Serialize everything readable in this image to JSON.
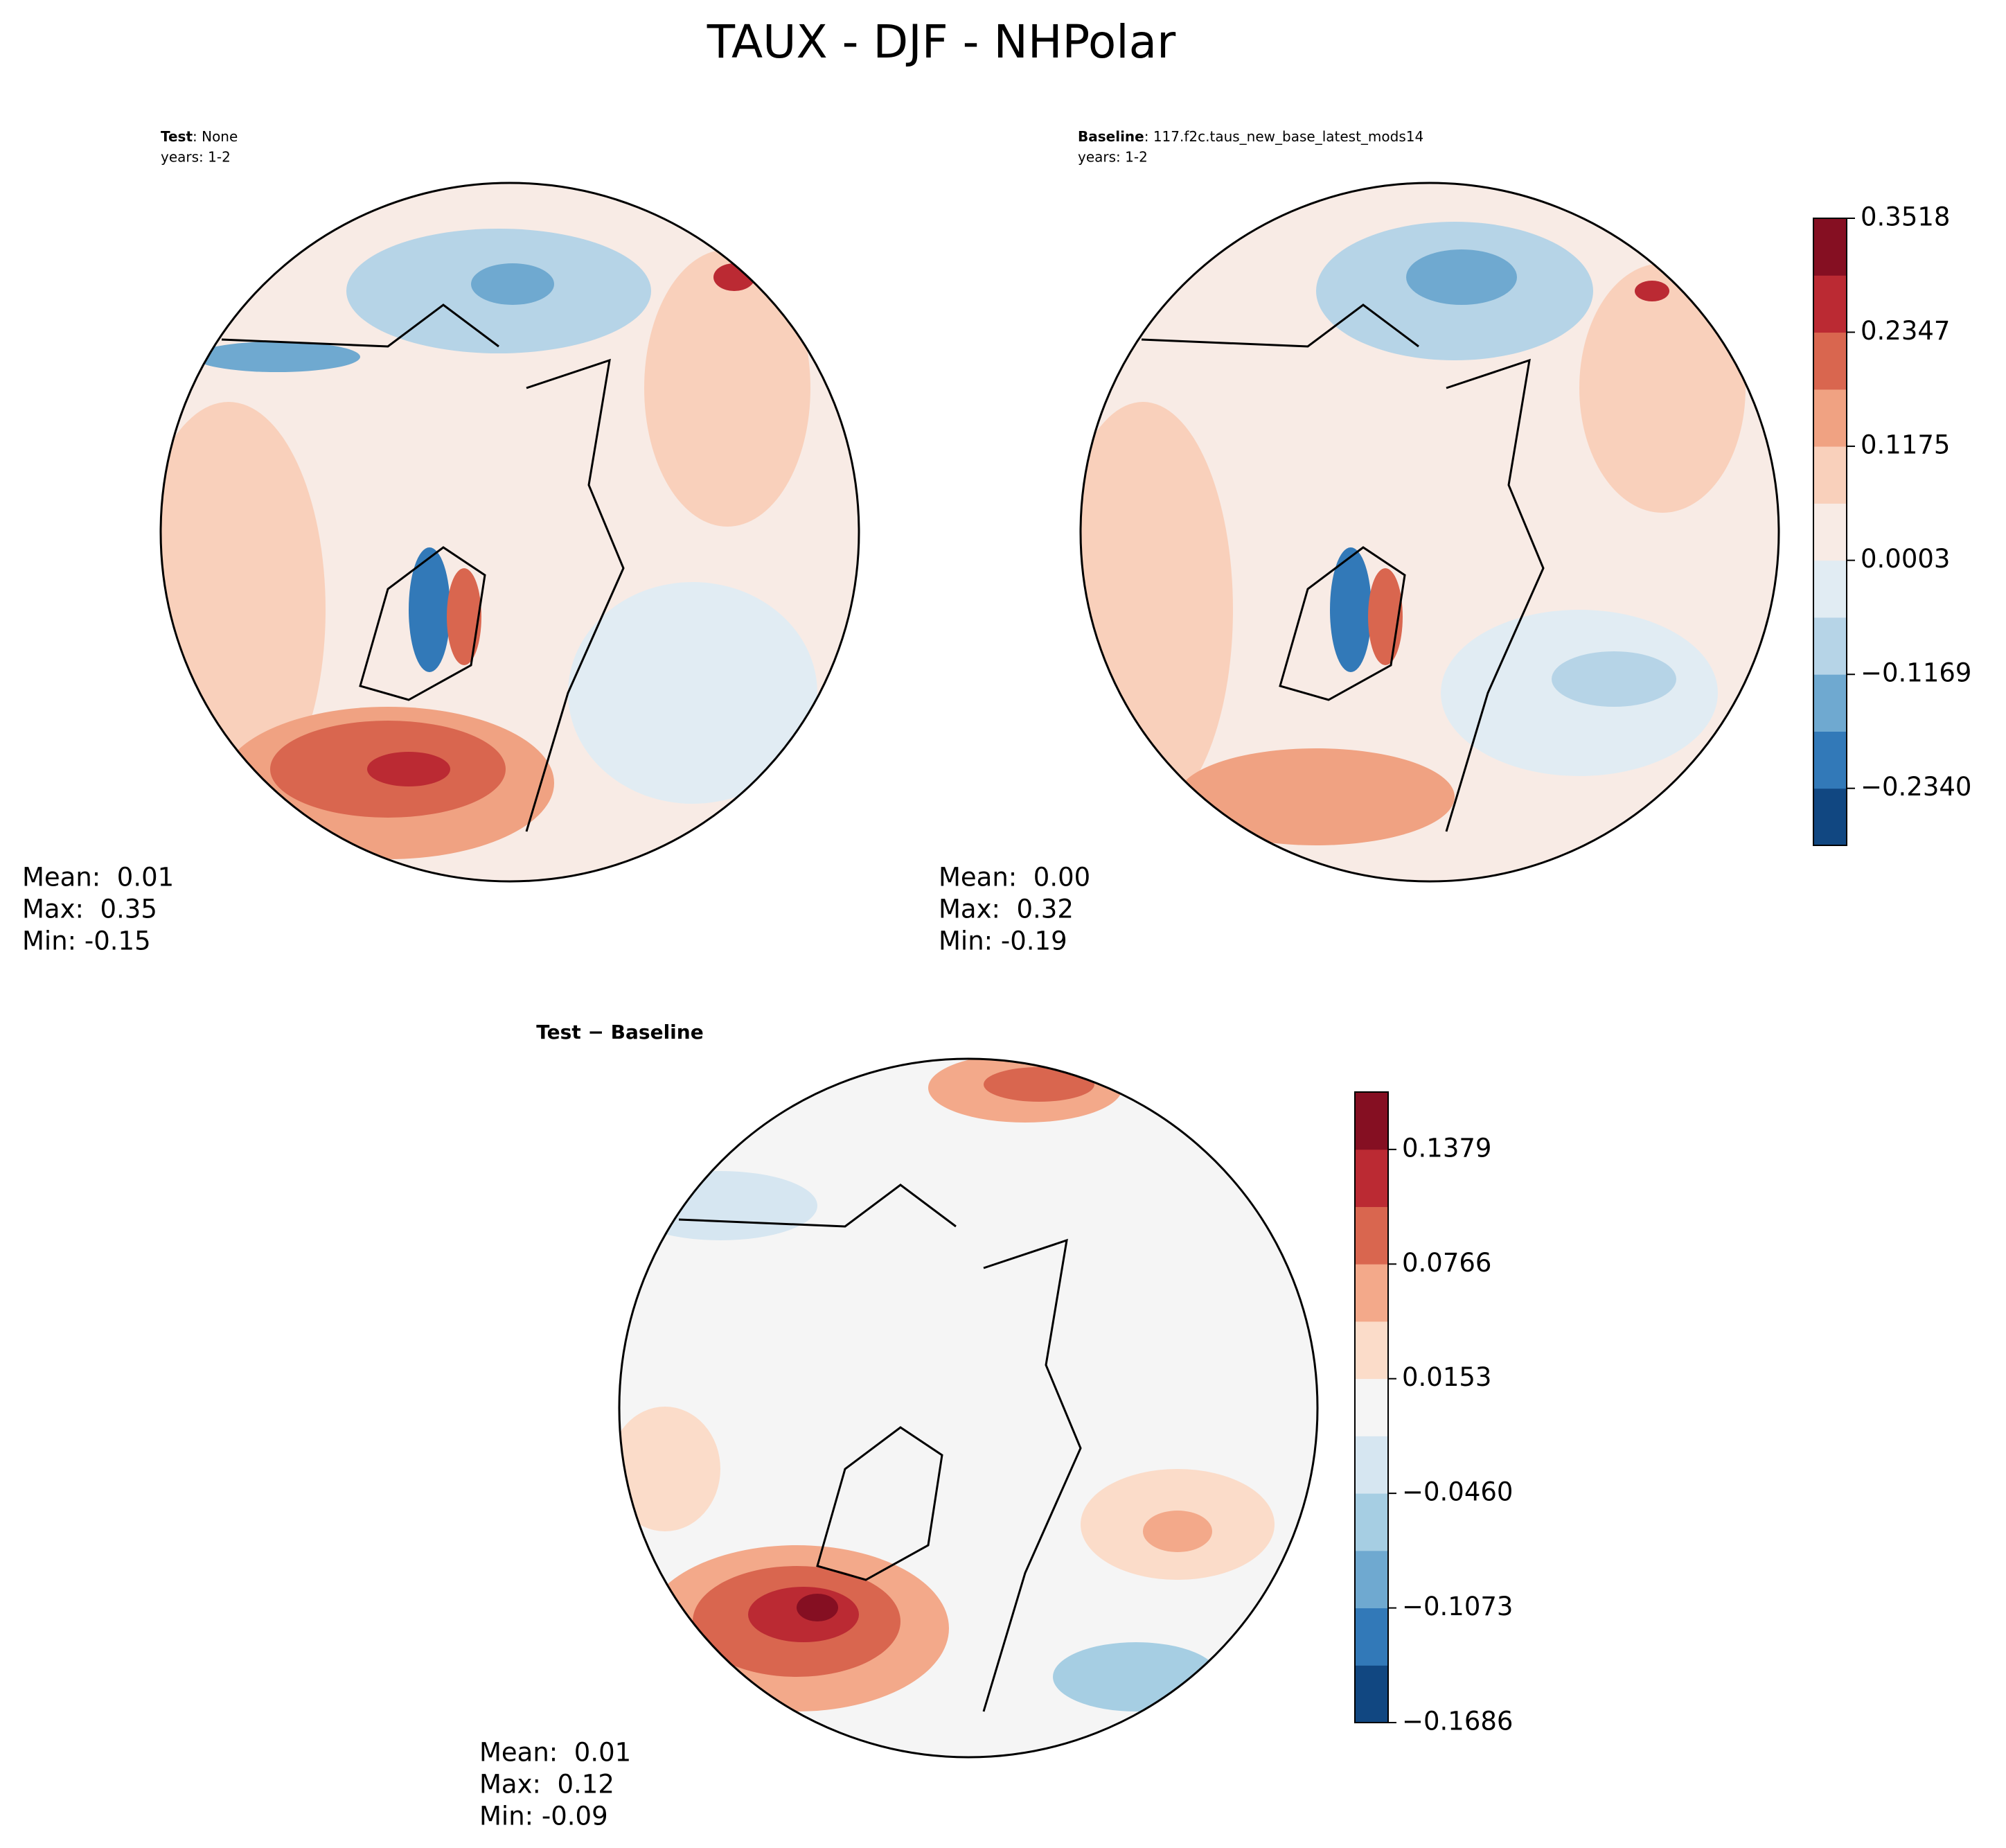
{
  "title": "TAUX - DJF - NHPolar",
  "chart_data": [
    {
      "type": "contour",
      "title_bold": "Test",
      "title_rest": ": None",
      "subtitle": "years: 1-2",
      "stats": [
        "Mean:  0.01",
        "Max:  0.35",
        "Min: -0.15"
      ]
    },
    {
      "type": "contour",
      "title_bold": "Baseline",
      "title_rest": ": 117.f2c.taus_new_base_latest_mods14",
      "subtitle": "years: 1-2",
      "stats": [
        "Mean:  0.00",
        "Max:  0.32",
        "Min: -0.19"
      ],
      "colors": [
        "#114781",
        "#3279b8",
        "#6fa9d0",
        "#b6d4e7",
        "#e1ecf3",
        "#f8ebe5",
        "#f9d0bb",
        "#f0a282",
        "#d9664f",
        "#bb2a33",
        "#850f22"
      ],
      "ylim": [
        -0.2926,
        0.3518
      ],
      "yticks": [
        {
          "value": -0.234,
          "label": "−0.2340"
        },
        {
          "value": -0.1169,
          "label": "−0.1169"
        },
        0.0003,
        0.1175,
        0.2347,
        0.3518
      ]
    },
    {
      "type": "contour",
      "title_bold": "Test − Baseline",
      "stats": [
        "Mean:  0.01",
        "Max:  0.12",
        "Min: -0.09"
      ],
      "colors": [
        "#114781",
        "#3279b8",
        "#6fa9d0",
        "#a6cee3",
        "#d6e6f1",
        "#f5f5f5",
        "#fbdcc9",
        "#f3a98a",
        "#d9664f",
        "#bb2a33",
        "#850f22"
      ],
      "ylim": [
        -0.1686,
        0.1686
      ],
      "yticks": [
        {
          "value": -0.1686,
          "label": "−0.1686"
        },
        {
          "value": -0.1073,
          "label": "−0.1073"
        },
        {
          "value": -0.046,
          "label": "−0.0460"
        },
        0.0153,
        0.0766,
        0.1379
      ]
    }
  ]
}
